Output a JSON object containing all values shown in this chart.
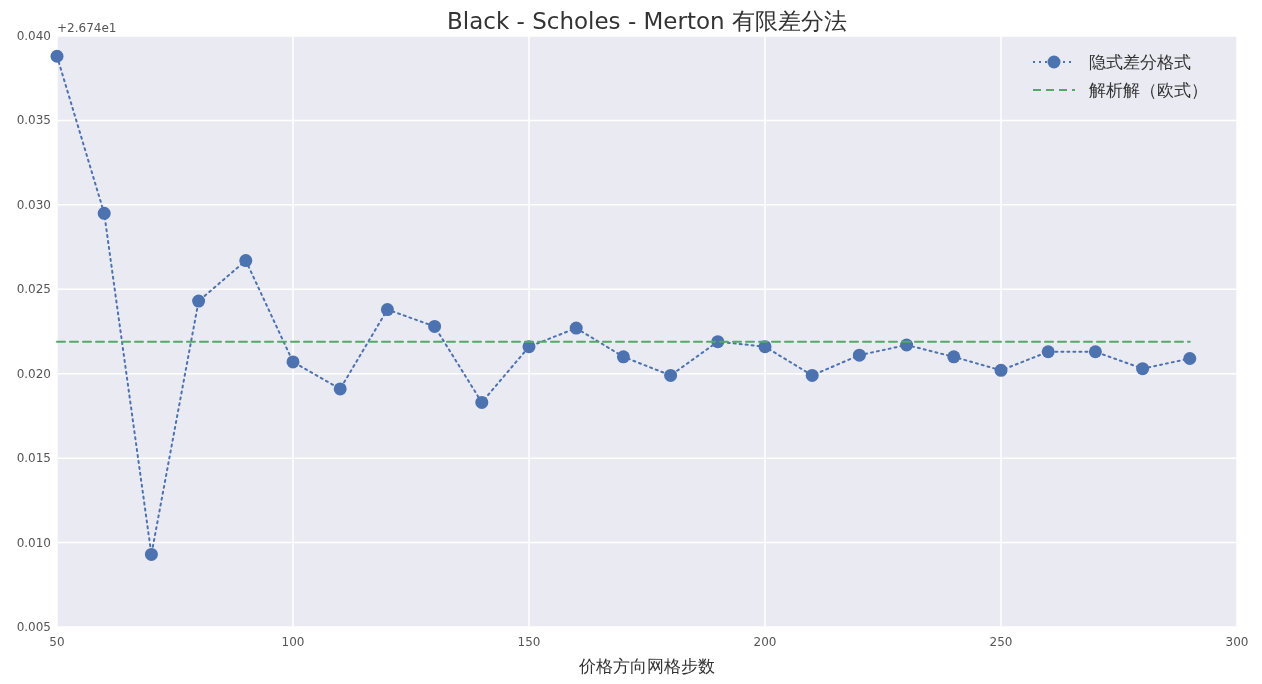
{
  "chart_data": {
    "type": "line",
    "title": "Black - Scholes - Merton 有限差分法",
    "xlabel": "价格方向网格步数",
    "annotations": [
      "+2.674e1"
    ],
    "x": [
      50,
      60,
      70,
      80,
      90,
      100,
      110,
      120,
      130,
      140,
      150,
      160,
      170,
      180,
      190,
      200,
      210,
      220,
      230,
      240,
      250,
      260,
      270,
      280,
      290
    ],
    "series": [
      {
        "name": "隐式差分格式",
        "color": "#4c72b0",
        "marker": "circle",
        "line_style": "dotted",
        "values": [
          0.0388,
          0.0295,
          0.0093,
          0.0243,
          0.0267,
          0.0207,
          0.0191,
          0.0238,
          0.0228,
          0.0183,
          0.0216,
          0.0227,
          0.021,
          0.0199,
          0.0219,
          0.0216,
          0.0199,
          0.0211,
          0.0217,
          0.021,
          0.0202,
          0.0213,
          0.0213,
          0.0203,
          0.0209
        ]
      },
      {
        "name": "解析解（欧式）",
        "color": "#55a868",
        "marker": "none",
        "line_style": "dashed",
        "x": [
          50,
          290
        ],
        "values": [
          0.0219,
          0.0219
        ]
      }
    ],
    "xlim": [
      50,
      300
    ],
    "xticks": [
      50,
      100,
      150,
      200,
      250,
      300
    ],
    "ylim": [
      0.005,
      0.04
    ],
    "yticks": [
      {
        "value": 0.005,
        "label": "0.005"
      },
      {
        "value": 0.01,
        "label": "0.010"
      },
      {
        "value": 0.015,
        "label": "0.015"
      },
      {
        "value": 0.02,
        "label": "0.020"
      },
      {
        "value": 0.025,
        "label": "0.025"
      },
      {
        "value": 0.03,
        "label": "0.030"
      },
      {
        "value": 0.035,
        "label": "0.035"
      },
      {
        "value": 0.04,
        "label": "0.040"
      }
    ],
    "grid": true,
    "legend": "top right"
  }
}
